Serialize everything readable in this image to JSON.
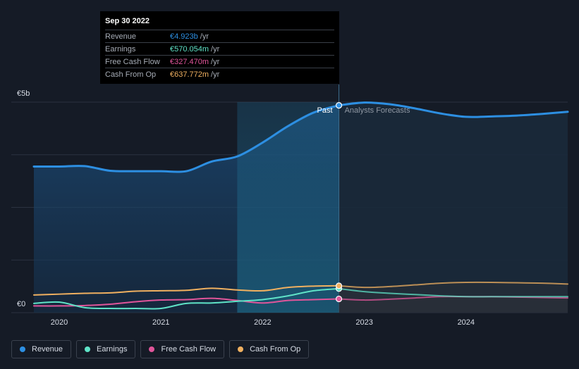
{
  "tooltip": {
    "date": "Sep 30 2022",
    "unit": "/yr",
    "rows": [
      {
        "label": "Revenue",
        "value": "€4.923b",
        "color": "#2d8fe2"
      },
      {
        "label": "Earnings",
        "value": "€570.054m",
        "color": "#5fe3c7"
      },
      {
        "label": "Free Cash Flow",
        "value": "€327.470m",
        "color": "#e0559a"
      },
      {
        "label": "Cash From Op",
        "value": "€637.772m",
        "color": "#f0b060"
      }
    ]
  },
  "chart_data": {
    "type": "line",
    "x_ticks": [
      2020,
      2021,
      2022,
      2023,
      2024
    ],
    "y_ticks": [
      {
        "value": 5,
        "label": "€5b"
      },
      {
        "value": 0,
        "label": "€0"
      }
    ],
    "xlim": [
      2019.75,
      2025.0
    ],
    "ylim": [
      0,
      5
    ],
    "y_unit": "€b",
    "grid": true,
    "divider_label_past": "Past",
    "divider_label_forecast": "Analysts Forecasts",
    "divider_x": 2022.75,
    "highlight_start_x": 2021.75,
    "series": [
      {
        "name": "Revenue",
        "color": "#2d8fe2",
        "points": [
          [
            2019.75,
            3.47
          ],
          [
            2020.0,
            3.47
          ],
          [
            2020.25,
            3.48
          ],
          [
            2020.5,
            3.37
          ],
          [
            2020.75,
            3.36
          ],
          [
            2021.0,
            3.36
          ],
          [
            2021.25,
            3.36
          ],
          [
            2021.5,
            3.59
          ],
          [
            2021.75,
            3.71
          ],
          [
            2022.0,
            4.04
          ],
          [
            2022.25,
            4.43
          ],
          [
            2022.5,
            4.75
          ],
          [
            2022.75,
            4.923
          ]
        ],
        "forecast": [
          [
            2022.75,
            4.923
          ],
          [
            2023.0,
            4.99
          ],
          [
            2023.25,
            4.95
          ],
          [
            2023.5,
            4.85
          ],
          [
            2023.75,
            4.73
          ],
          [
            2024.0,
            4.65
          ],
          [
            2024.25,
            4.66
          ],
          [
            2024.5,
            4.68
          ],
          [
            2024.75,
            4.72
          ],
          [
            2025.0,
            4.77
          ]
        ]
      },
      {
        "name": "Earnings",
        "color": "#5fe3c7",
        "points": [
          [
            2019.75,
            0.22
          ],
          [
            2020.0,
            0.25
          ],
          [
            2020.25,
            0.12
          ],
          [
            2020.5,
            0.1
          ],
          [
            2020.75,
            0.1
          ],
          [
            2021.0,
            0.1
          ],
          [
            2021.25,
            0.22
          ],
          [
            2021.5,
            0.23
          ],
          [
            2021.75,
            0.27
          ],
          [
            2022.0,
            0.31
          ],
          [
            2022.25,
            0.4
          ],
          [
            2022.5,
            0.52
          ],
          [
            2022.75,
            0.57
          ]
        ],
        "forecast": [
          [
            2022.75,
            0.57
          ],
          [
            2023.0,
            0.5
          ],
          [
            2023.25,
            0.46
          ],
          [
            2023.5,
            0.43
          ],
          [
            2023.75,
            0.4
          ],
          [
            2024.0,
            0.38
          ],
          [
            2024.25,
            0.38
          ],
          [
            2024.5,
            0.38
          ],
          [
            2024.75,
            0.38
          ],
          [
            2025.0,
            0.38
          ]
        ]
      },
      {
        "name": "Free Cash Flow",
        "color": "#e0559a",
        "points": [
          [
            2019.75,
            0.16
          ],
          [
            2020.0,
            0.16
          ],
          [
            2020.25,
            0.17
          ],
          [
            2020.5,
            0.2
          ],
          [
            2020.75,
            0.26
          ],
          [
            2021.0,
            0.3
          ],
          [
            2021.25,
            0.31
          ],
          [
            2021.5,
            0.34
          ],
          [
            2021.75,
            0.29
          ],
          [
            2022.0,
            0.23
          ],
          [
            2022.25,
            0.29
          ],
          [
            2022.5,
            0.31
          ],
          [
            2022.75,
            0.327
          ]
        ],
        "forecast": [
          [
            2022.75,
            0.327
          ],
          [
            2023.0,
            0.3
          ],
          [
            2023.25,
            0.32
          ],
          [
            2023.5,
            0.35
          ],
          [
            2023.75,
            0.38
          ],
          [
            2024.0,
            0.38
          ],
          [
            2024.25,
            0.38
          ],
          [
            2024.5,
            0.37
          ],
          [
            2024.75,
            0.36
          ],
          [
            2025.0,
            0.35
          ]
        ]
      },
      {
        "name": "Cash From Op",
        "color": "#f0b060",
        "points": [
          [
            2019.75,
            0.42
          ],
          [
            2020.0,
            0.44
          ],
          [
            2020.25,
            0.46
          ],
          [
            2020.5,
            0.47
          ],
          [
            2020.75,
            0.51
          ],
          [
            2021.0,
            0.52
          ],
          [
            2021.25,
            0.53
          ],
          [
            2021.5,
            0.58
          ],
          [
            2021.75,
            0.54
          ],
          [
            2022.0,
            0.52
          ],
          [
            2022.25,
            0.6
          ],
          [
            2022.5,
            0.63
          ],
          [
            2022.75,
            0.638
          ]
        ],
        "forecast": [
          [
            2022.75,
            0.638
          ],
          [
            2023.0,
            0.6
          ],
          [
            2023.25,
            0.62
          ],
          [
            2023.5,
            0.66
          ],
          [
            2023.75,
            0.7
          ],
          [
            2024.0,
            0.72
          ],
          [
            2024.25,
            0.72
          ],
          [
            2024.5,
            0.71
          ],
          [
            2024.75,
            0.7
          ],
          [
            2025.0,
            0.68
          ]
        ]
      }
    ]
  },
  "legend": [
    {
      "label": "Revenue",
      "color": "#2d8fe2"
    },
    {
      "label": "Earnings",
      "color": "#5fe3c7"
    },
    {
      "label": "Free Cash Flow",
      "color": "#e0559a"
    },
    {
      "label": "Cash From Op",
      "color": "#f0b060"
    }
  ]
}
